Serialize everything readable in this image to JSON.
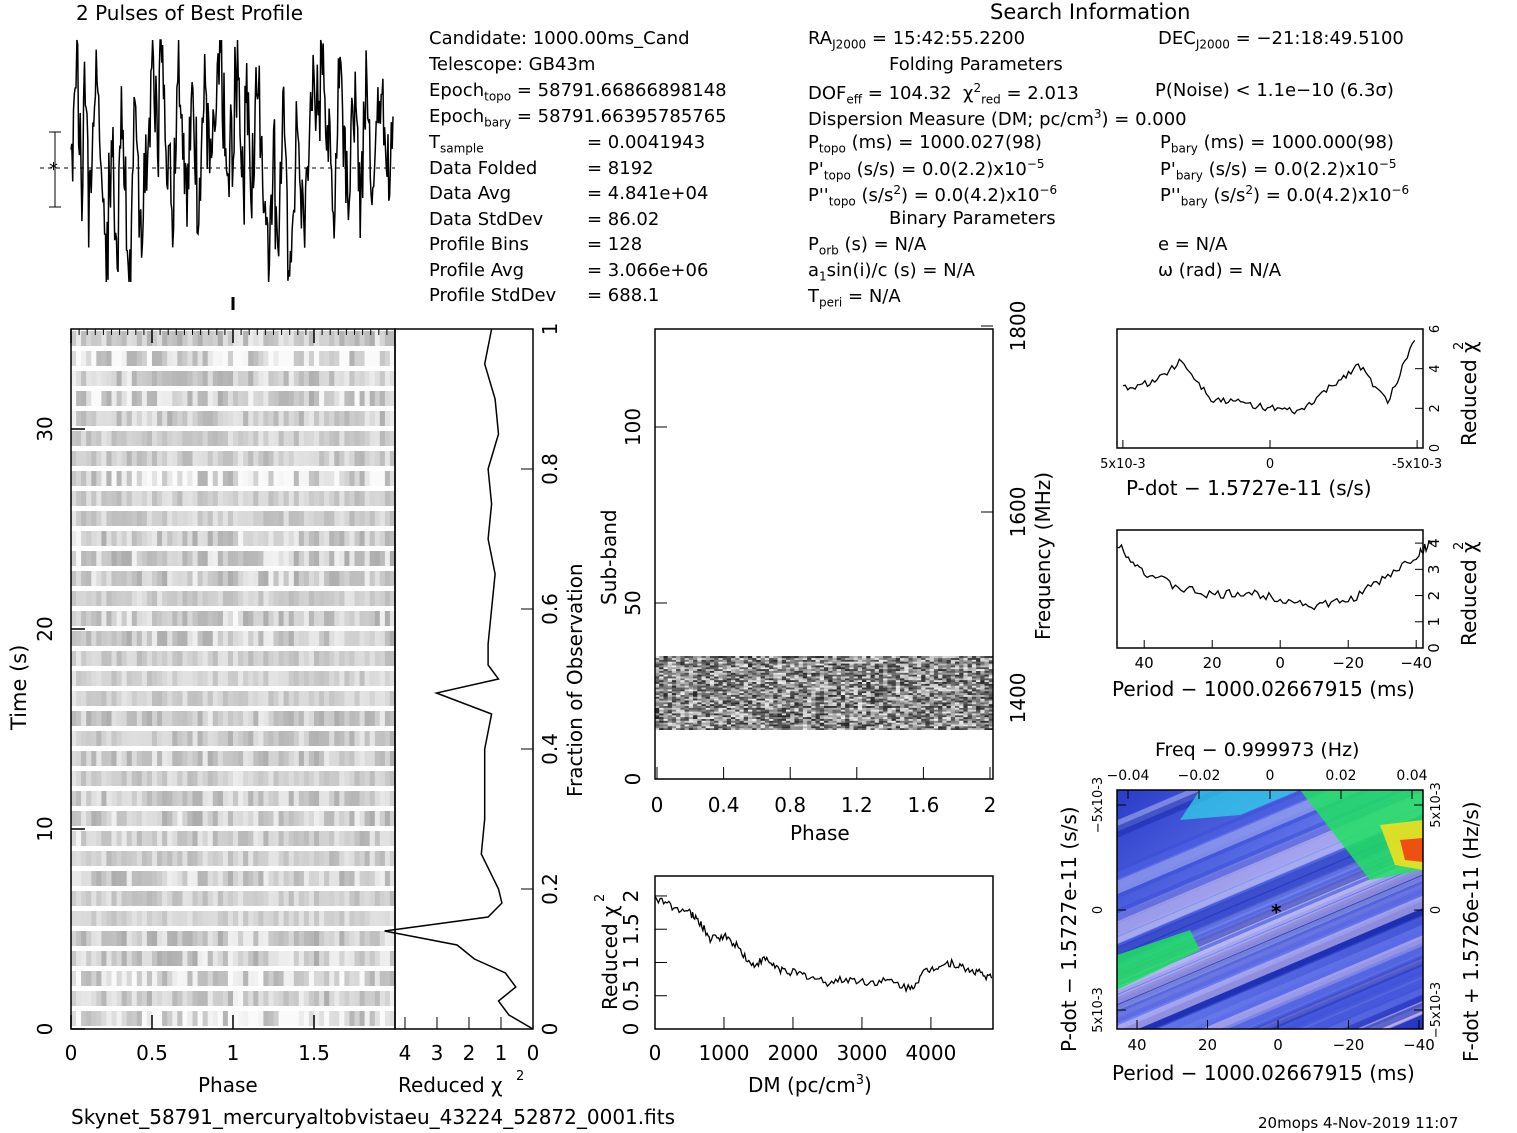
{
  "profile": {
    "title": "2 Pulses of Best Profile"
  },
  "search": {
    "title": "Search Information",
    "folding_title": "Folding Parameters",
    "binary_title": "Binary Parameters",
    "candidate": "Candidate:  1000.00ms_Cand",
    "telescope": "Telescope:  GB43m",
    "epoch_topo_label": "Epoch",
    "epoch_topo_sub": "topo",
    "epoch_topo_value": "= 58791.66866898148",
    "epoch_bary_label": "Epoch",
    "epoch_bary_sub": "bary",
    "epoch_bary_value": "= 58791.66395785765",
    "stats": [
      {
        "label": "T",
        "sub": "sample",
        "value": "=  0.0041943"
      },
      {
        "label": "Data Folded",
        "sub": "",
        "value": "=  8192"
      },
      {
        "label": "Data Avg",
        "sub": "",
        "value": "=  4.841e+04"
      },
      {
        "label": "Data StdDev",
        "sub": "",
        "value": "=  86.02"
      },
      {
        "label": "Profile Bins",
        "sub": "",
        "value": "=  128"
      },
      {
        "label": "Profile Avg",
        "sub": "",
        "value": "=  3.066e+06"
      },
      {
        "label": "Profile StdDev",
        "sub": "",
        "value": "=  688.1"
      }
    ],
    "ra_label": "RA",
    "ra_sub": "J2000",
    "ra_value": "= 15:42:55.2200",
    "dec_label": "DEC",
    "dec_sub": "J2000",
    "dec_value": "= −21:18:49.5100",
    "dof": "DOF",
    "dof_sub": "eff",
    "dof_value": "= 104.32",
    "chi_label": "χ",
    "chi_sub": "red",
    "chi_value": "= 2.013",
    "pnoise": "P(Noise) < 1.1e−10   (6.3σ)",
    "dm_line": "Dispersion Measure (DM; pc/cm",
    "dm_sup": "3",
    "dm_value": ") = 0.000",
    "p_topo": "P",
    "p_topo_sub": "topo",
    "p_topo_value": "(ms) =  1000.027(98)",
    "pd_topo_sub": "topo",
    "pd_topo_value": "(s/s) = 0.0(2.2)x10",
    "pd_topo_exp": "−5",
    "pdd_topo_sub": "topo",
    "pdd_topo_value": "(s/s",
    "pdd_topo_value2": ") = 0.0(4.2)x10",
    "pdd_topo_exp": "−6",
    "p_bary_sub": "bary",
    "p_bary_value": "(ms) =  1000.000(98)",
    "pd_bary_sub": "bary",
    "pd_bary_value": "(s/s) = 0.0(2.2)x10",
    "pd_bary_exp": "−5",
    "pdd_bary_sub": "bary",
    "pdd_bary_value": "(s/s",
    "pdd_bary_value2": ") = 0.0(4.2)x10",
    "pdd_bary_exp": "−6",
    "porb_sub": "orb",
    "porb_value": "(s) = N/A",
    "asini": "a",
    "asini_sub": "1",
    "asini_value": "sin(i)/c (s) = N/A",
    "tperi_sub": "peri",
    "tperi_value": "= N/A",
    "ecc": "e = N/A",
    "omega": "ω (rad) = N/A"
  },
  "axes": {
    "time_label": "Time (s)",
    "phase_label": "Phase",
    "redchi_label": "Reduced χ",
    "frac_obs_label": "Fraction of Observation",
    "subband_label": "Sub-band",
    "freq_label": "Frequency (MHz)",
    "dm_label": "DM (pc/cm",
    "dm_sup": "3",
    "pdot_label": "P-dot − 1.5727e-11 (s/s)",
    "period_label": "Period − 1000.02667915 (ms)",
    "freq_top_label": "Freq − 0.999973 (Hz)",
    "fdot_label": "F-dot + 1.5726e-11 (Hz/s)",
    "pdot_left_label": "P-dot − 1.5727e-11 (s/s)"
  },
  "footer": {
    "filename": "Skynet_58791_mercuryaltobvistaeu_43224_52872_0001.fits",
    "stamp": "20mops   4-Nov-2019 11:07"
  },
  "chart_data": [
    {
      "type": "line",
      "title": "2 Pulses of Best Profile",
      "x": "phase 0-2",
      "note_values": "pulse profile repeated twice; noise-like",
      "values": [
        0.55,
        0.8,
        0.95,
        0.6,
        0.4,
        0.85,
        0.7,
        0.3,
        0.5,
        0.75,
        0.9,
        0.6,
        0.45,
        0.25,
        0.1,
        0.4,
        0.55,
        0.3,
        0.2,
        0.5,
        0.65,
        0.4,
        0.15,
        0.05,
        0.35,
        0.6,
        0.5,
        0.35,
        0.2,
        0.45,
        0.55,
        0.7,
        0.9,
        0.75,
        0.6,
        1.0,
        0.85,
        0.7,
        0.55,
        0.45,
        0.3,
        0.6,
        0.9,
        0.85,
        0.65,
        0.5,
        0.4,
        0.6,
        0.75,
        0.55,
        0.35,
        0.5,
        0.7,
        0.8,
        0.6,
        0.45,
        0.55,
        0.65,
        0.8,
        0.9,
        0.7,
        0.5,
        0.35,
        0.6
      ]
    },
    {
      "type": "heatmap",
      "xlabel": "Phase",
      "ylabel": "Time (s)",
      "xlim": [
        0,
        2
      ],
      "ylim": [
        0,
        35
      ],
      "xticks": [
        "0",
        "0.5",
        "1",
        "1.5"
      ],
      "yticks": [
        "0",
        "10",
        "20",
        "30"
      ]
    },
    {
      "type": "line",
      "xlabel": "Reduced χ",
      "xticks": [
        "4",
        "3",
        "2",
        "1",
        "0"
      ],
      "ylabel": "Fraction of Observation",
      "yticks": [
        "0",
        "0.2",
        "0.4",
        "0.6",
        "0.8",
        "1"
      ],
      "x": [
        0,
        0.02,
        0.04,
        0.06,
        0.08,
        0.1,
        0.12,
        0.14,
        0.16,
        0.18,
        0.2,
        0.25,
        0.3,
        0.35,
        0.4,
        0.45,
        0.48,
        0.5,
        0.52,
        0.55,
        0.6,
        0.65,
        0.7,
        0.75,
        0.8,
        0.85,
        0.9,
        0.95,
        1.0
      ],
      "y": [
        0,
        0.7,
        1.0,
        0.5,
        0.8,
        1.7,
        2.2,
        4.3,
        1.3,
        0.9,
        1.0,
        1.5,
        1.4,
        1.4,
        1.4,
        1.2,
        2.8,
        1.0,
        1.3,
        1.3,
        1.2,
        1.1,
        1.3,
        1.2,
        1.3,
        1.0,
        1.1,
        1.4,
        1.2
      ]
    },
    {
      "type": "heatmap",
      "xlabel": "Phase",
      "ylabel": "Sub-band",
      "y2label": "Frequency (MHz)",
      "xticks": [
        "0",
        "0.4",
        "0.8",
        "1.2",
        "1.6",
        "2"
      ],
      "yticks": [
        "0",
        "50",
        "100"
      ],
      "y2ticks": [
        "1400",
        "1600",
        "1800"
      ],
      "filled_subbands": [
        14,
        35
      ]
    },
    {
      "type": "line",
      "xlabel": "DM (pc/cm3)",
      "ylabel": "Reduced χ",
      "xticks": [
        "0",
        "1000",
        "2000",
        "3000",
        "4000"
      ],
      "yticks": [
        "0",
        "0.5",
        "1",
        "1.5",
        "2"
      ],
      "xlim": [
        0,
        4900
      ],
      "ylim": [
        0,
        2.3
      ],
      "x": [
        0,
        250,
        500,
        650,
        800,
        1000,
        1200,
        1400,
        1600,
        1800,
        2000,
        2200,
        2500,
        2800,
        3100,
        3400,
        3700,
        3900,
        4100,
        4300,
        4500,
        4700,
        4900
      ],
      "y": [
        1.95,
        1.85,
        1.75,
        1.6,
        1.35,
        1.4,
        1.25,
        0.95,
        1.05,
        0.9,
        0.85,
        0.8,
        0.7,
        0.75,
        0.7,
        0.72,
        0.6,
        0.85,
        0.95,
        1.0,
        0.9,
        0.85,
        0.75
      ]
    },
    {
      "type": "line",
      "xlabel": "P-dot − 1.5727e-11 (s/s)",
      "ylabel": "Reduced χ",
      "xticks": [
        "5x10-3",
        "0",
        "-5x10-3"
      ],
      "yticks": [
        "0",
        "2",
        "4",
        "6"
      ],
      "ylim": [
        0,
        6
      ],
      "x": [
        5,
        4,
        3,
        2,
        1,
        0,
        -1,
        -2,
        -3,
        -4,
        -5
      ],
      "y": [
        3.0,
        3.3,
        4.4,
        2.5,
        2.3,
        2.0,
        1.8,
        3.0,
        4.2,
        2.3,
        5.8
      ]
    },
    {
      "type": "line",
      "xlabel": "Period − 1000.02667915 (ms)",
      "ylabel": "Reduced χ",
      "xticks": [
        "40",
        "20",
        "0",
        "−20",
        "−40"
      ],
      "yticks": [
        "0",
        "1",
        "2",
        "3",
        "4"
      ],
      "ylim": [
        0,
        4.5
      ],
      "x": [
        48,
        40,
        30,
        20,
        10,
        0,
        -10,
        -20,
        -30,
        -40,
        -45
      ],
      "y": [
        4.0,
        2.9,
        2.3,
        2.0,
        2.1,
        1.9,
        1.6,
        1.8,
        2.6,
        3.5,
        4.1
      ]
    },
    {
      "type": "heatmap",
      "xlabel": "Period − 1000.02667915 (ms)",
      "ylabel": "P-dot − 1.5727e-11 (s/s)",
      "x2label": "Freq − 0.999973 (Hz)",
      "y2label": "F-dot + 1.5726e-11 (Hz/s)",
      "xticks": [
        "40",
        "20",
        "0",
        "−20",
        "−40"
      ],
      "x2ticks": [
        "−0.04",
        "−0.02",
        "0",
        "0.02",
        "0.04"
      ],
      "yticks": [
        "5x10-3",
        "0",
        "−5x10-3"
      ],
      "y2ticks": [
        "−5x10-3",
        "0",
        "5x10-3"
      ]
    }
  ]
}
